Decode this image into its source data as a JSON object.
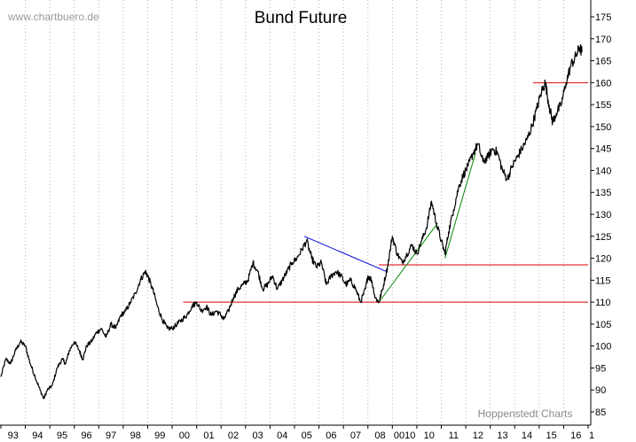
{
  "chart_data": {
    "type": "line",
    "title": "Bund Future",
    "watermark": "www.chartbuero.de",
    "source_note": "Hoppenstedt Charts",
    "xlabel": "",
    "ylabel": "",
    "x_ticks": [
      "93",
      "94",
      "95",
      "96",
      "97",
      "98",
      "99",
      "00",
      "01",
      "02",
      "03",
      "04",
      "05",
      "06",
      "07",
      "08",
      "0010",
      "10",
      "11",
      "12",
      "13",
      "14",
      "15",
      "16",
      "1"
    ],
    "y_ticks": [
      85,
      90,
      95,
      100,
      105,
      110,
      115,
      120,
      125,
      130,
      135,
      140,
      145,
      150,
      155,
      160,
      165,
      170,
      175
    ],
    "ylim": [
      82,
      179
    ],
    "xlim": [
      1993,
      2017
    ],
    "grid": "vertical dotted",
    "colors": {
      "price": "#000000",
      "support": "#dd0000",
      "downtrend": "#0000dd",
      "uptrend": "#008800",
      "grid": "#b4b4b4"
    },
    "series": [
      {
        "values": [
          [
            1993.0,
            93
          ],
          [
            1993.2,
            97
          ],
          [
            1993.4,
            96
          ],
          [
            1993.6,
            99
          ],
          [
            1993.8,
            101
          ],
          [
            1994.0,
            100
          ],
          [
            1994.2,
            96
          ],
          [
            1994.4,
            93
          ],
          [
            1994.6,
            90
          ],
          [
            1994.75,
            88
          ],
          [
            1994.9,
            90
          ],
          [
            1995.1,
            91
          ],
          [
            1995.3,
            95
          ],
          [
            1995.5,
            97
          ],
          [
            1995.65,
            96
          ],
          [
            1995.8,
            99
          ],
          [
            1996.0,
            101
          ],
          [
            1996.2,
            99
          ],
          [
            1996.35,
            97
          ],
          [
            1996.5,
            100
          ],
          [
            1996.7,
            101
          ],
          [
            1996.9,
            103
          ],
          [
            1997.1,
            104
          ],
          [
            1997.3,
            102
          ],
          [
            1997.5,
            105
          ],
          [
            1997.7,
            104
          ],
          [
            1997.9,
            107
          ],
          [
            1998.1,
            108
          ],
          [
            1998.3,
            110
          ],
          [
            1998.5,
            112
          ],
          [
            1998.7,
            115
          ],
          [
            1998.9,
            117
          ],
          [
            1999.0,
            116
          ],
          [
            1999.2,
            113
          ],
          [
            1999.4,
            109
          ],
          [
            1999.6,
            106
          ],
          [
            1999.8,
            104
          ],
          [
            2000.0,
            104
          ],
          [
            2000.2,
            105
          ],
          [
            2000.4,
            106
          ],
          [
            2000.6,
            107
          ],
          [
            2000.8,
            109
          ],
          [
            2001.0,
            110
          ],
          [
            2001.2,
            108
          ],
          [
            2001.4,
            109
          ],
          [
            2001.6,
            107
          ],
          [
            2001.8,
            108
          ],
          [
            2002.0,
            107
          ],
          [
            2002.1,
            106
          ],
          [
            2002.3,
            108
          ],
          [
            2002.5,
            111
          ],
          [
            2002.7,
            113
          ],
          [
            2002.9,
            114
          ],
          [
            2003.1,
            115
          ],
          [
            2003.3,
            119
          ],
          [
            2003.5,
            117
          ],
          [
            2003.7,
            113
          ],
          [
            2003.9,
            114
          ],
          [
            2004.1,
            116
          ],
          [
            2004.3,
            113
          ],
          [
            2004.5,
            115
          ],
          [
            2004.7,
            117
          ],
          [
            2004.9,
            119
          ],
          [
            2005.1,
            120
          ],
          [
            2005.3,
            122
          ],
          [
            2005.5,
            124
          ],
          [
            2005.7,
            120
          ],
          [
            2005.9,
            118
          ],
          [
            2006.1,
            119
          ],
          [
            2006.3,
            114
          ],
          [
            2006.5,
            116
          ],
          [
            2006.7,
            117
          ],
          [
            2006.9,
            116
          ],
          [
            2007.1,
            114
          ],
          [
            2007.3,
            115
          ],
          [
            2007.5,
            113
          ],
          [
            2007.7,
            110
          ],
          [
            2007.9,
            113
          ],
          [
            2008.0,
            116
          ],
          [
            2008.15,
            115
          ],
          [
            2008.3,
            111
          ],
          [
            2008.45,
            110
          ],
          [
            2008.6,
            113
          ],
          [
            2008.8,
            118
          ],
          [
            2009.0,
            125
          ],
          [
            2009.2,
            121
          ],
          [
            2009.4,
            119
          ],
          [
            2009.6,
            121
          ],
          [
            2009.8,
            123
          ],
          [
            2010.0,
            121
          ],
          [
            2010.2,
            124
          ],
          [
            2010.4,
            127
          ],
          [
            2010.6,
            133
          ],
          [
            2010.8,
            128
          ],
          [
            2011.0,
            124
          ],
          [
            2011.15,
            121
          ],
          [
            2011.3,
            126
          ],
          [
            2011.5,
            131
          ],
          [
            2011.7,
            136
          ],
          [
            2011.9,
            139
          ],
          [
            2012.1,
            141
          ],
          [
            2012.3,
            144
          ],
          [
            2012.5,
            146
          ],
          [
            2012.7,
            142
          ],
          [
            2012.9,
            143
          ],
          [
            2013.1,
            145
          ],
          [
            2013.3,
            144
          ],
          [
            2013.5,
            140
          ],
          [
            2013.7,
            138
          ],
          [
            2013.9,
            141
          ],
          [
            2014.1,
            143
          ],
          [
            2014.3,
            145
          ],
          [
            2014.5,
            147
          ],
          [
            2014.7,
            150
          ],
          [
            2014.9,
            154
          ],
          [
            2015.1,
            158
          ],
          [
            2015.25,
            160
          ],
          [
            2015.4,
            155
          ],
          [
            2015.55,
            151
          ],
          [
            2015.7,
            153
          ],
          [
            2015.9,
            155
          ],
          [
            2016.1,
            160
          ],
          [
            2016.3,
            164
          ],
          [
            2016.5,
            166
          ],
          [
            2016.65,
            168
          ],
          [
            2016.75,
            167
          ]
        ]
      }
    ],
    "annotations": [
      {
        "kind": "support",
        "x": [
          2000.45,
          2017
        ],
        "y": [
          110,
          110
        ]
      },
      {
        "kind": "support",
        "x": [
          2008.45,
          2017
        ],
        "y": [
          118.5,
          118.5
        ]
      },
      {
        "kind": "support",
        "x": [
          2014.75,
          2017
        ],
        "y": [
          160,
          160
        ]
      },
      {
        "kind": "downtrend",
        "x": [
          2005.4,
          2008.75
        ],
        "y": [
          125,
          117
        ]
      },
      {
        "kind": "uptrend",
        "x": [
          2008.45,
          2010.85
        ],
        "y": [
          110,
          128
        ]
      },
      {
        "kind": "uptrend",
        "x": [
          2011.15,
          2012.4
        ],
        "y": [
          120,
          144
        ]
      }
    ]
  }
}
